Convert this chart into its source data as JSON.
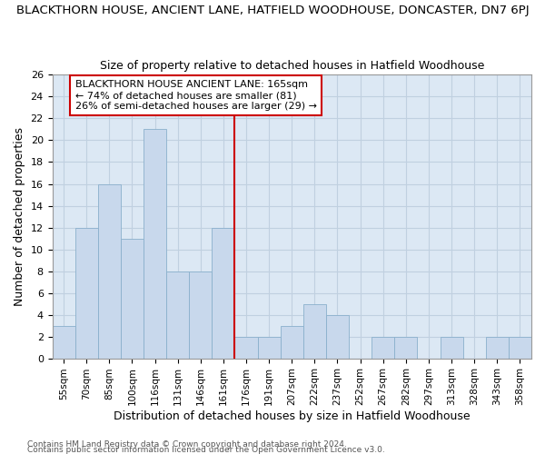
{
  "title_main": "BLACKTHORN HOUSE, ANCIENT LANE, HATFIELD WOODHOUSE, DONCASTER, DN7 6PJ",
  "title_sub": "Size of property relative to detached houses in Hatfield Woodhouse",
  "xlabel": "Distribution of detached houses by size in Hatfield Woodhouse",
  "ylabel": "Number of detached properties",
  "categories": [
    "55sqm",
    "70sqm",
    "85sqm",
    "100sqm",
    "116sqm",
    "131sqm",
    "146sqm",
    "161sqm",
    "176sqm",
    "191sqm",
    "207sqm",
    "222sqm",
    "237sqm",
    "252sqm",
    "267sqm",
    "282sqm",
    "297sqm",
    "313sqm",
    "328sqm",
    "343sqm",
    "358sqm"
  ],
  "values": [
    3,
    12,
    16,
    11,
    21,
    8,
    8,
    12,
    2,
    2,
    3,
    5,
    4,
    0,
    2,
    2,
    0,
    2,
    0,
    2,
    2
  ],
  "bar_color": "#c8d8ec",
  "bar_edgecolor": "#8ab0cc",
  "vline_color": "#cc0000",
  "vline_x": 7.5,
  "annotation_text": "BLACKTHORN HOUSE ANCIENT LANE: 165sqm\n← 74% of detached houses are smaller (81)\n26% of semi-detached houses are larger (29) →",
  "annotation_box_edgecolor": "#cc0000",
  "ylim": [
    0,
    26
  ],
  "yticks": [
    0,
    2,
    4,
    6,
    8,
    10,
    12,
    14,
    16,
    18,
    20,
    22,
    24,
    26
  ],
  "grid_color": "#c0d0e0",
  "bg_color": "#dce8f4",
  "footer1": "Contains HM Land Registry data © Crown copyright and database right 2024.",
  "footer2": "Contains public sector information licensed under the Open Government Licence v3.0."
}
